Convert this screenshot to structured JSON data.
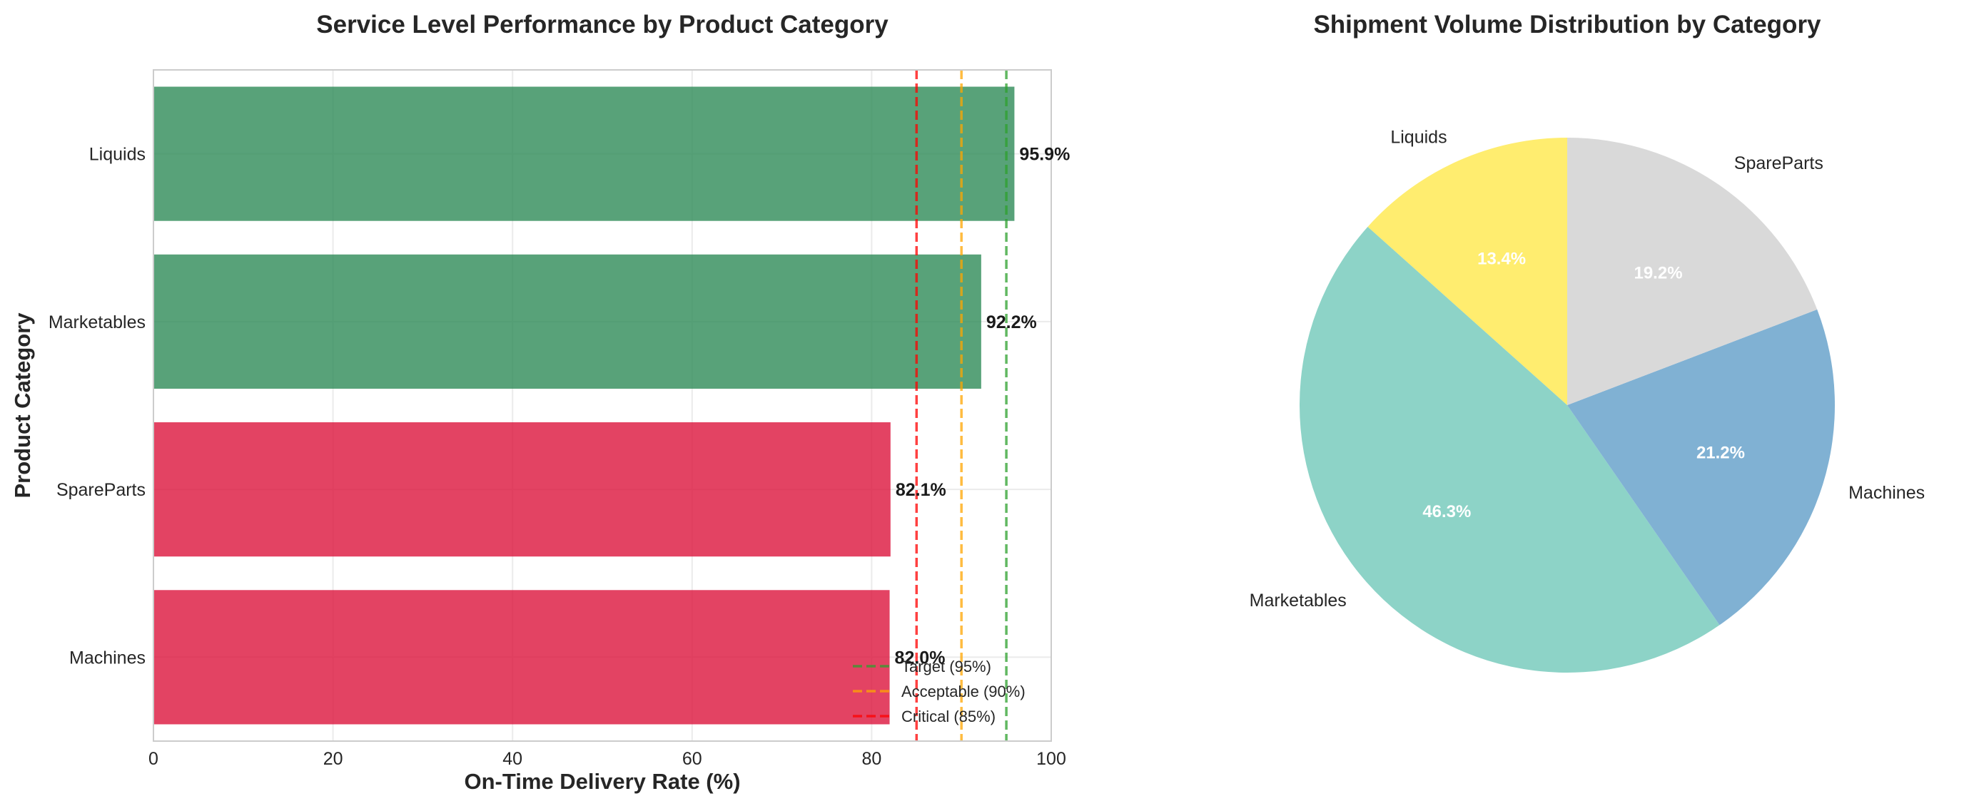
{
  "chart_data": [
    {
      "type": "bar",
      "orientation": "horizontal",
      "title": "Service Level Performance by Product Category",
      "xlabel": "On-Time Delivery Rate (%)",
      "ylabel": "Product Category",
      "xlim": [
        0,
        100
      ],
      "xticks": [
        "0",
        "20",
        "40",
        "60",
        "80",
        "100"
      ],
      "categories": [
        "Liquids",
        "Marketables",
        "SpareParts",
        "Machines"
      ],
      "values": [
        95.9,
        92.2,
        82.1,
        82.0
      ],
      "value_labels": [
        "95.9%",
        "92.2%",
        "82.1%",
        "82.0%"
      ],
      "bar_colors": [
        "#2e8b57",
        "#2e8b57",
        "#dc143c",
        "#dc143c"
      ],
      "grid": true,
      "reference_lines": [
        {
          "label": "Target (95%)",
          "value": 95,
          "color": "#2ca02c"
        },
        {
          "label": "Acceptable (90%)",
          "value": 90,
          "color": "#ffa500"
        },
        {
          "label": "Critical (85%)",
          "value": 85,
          "color": "#ff0000"
        }
      ],
      "legend_position": "lower-right"
    },
    {
      "type": "pie",
      "title": "Shipment Volume Distribution by Category",
      "slices": [
        {
          "label": "Liquids",
          "value": 13.4,
          "pct_label": "13.4%",
          "color": "#ffed6f"
        },
        {
          "label": "Marketables",
          "value": 46.3,
          "pct_label": "46.3%",
          "color": "#8dd3c7"
        },
        {
          "label": "Machines",
          "value": 21.2,
          "pct_label": "21.2%",
          "color": "#80b1d3"
        },
        {
          "label": "SpareParts",
          "value": 19.2,
          "pct_label": "19.2%",
          "color": "#d9d9d9"
        }
      ],
      "start_angle_deg": 90,
      "direction": "counterclockwise"
    }
  ]
}
